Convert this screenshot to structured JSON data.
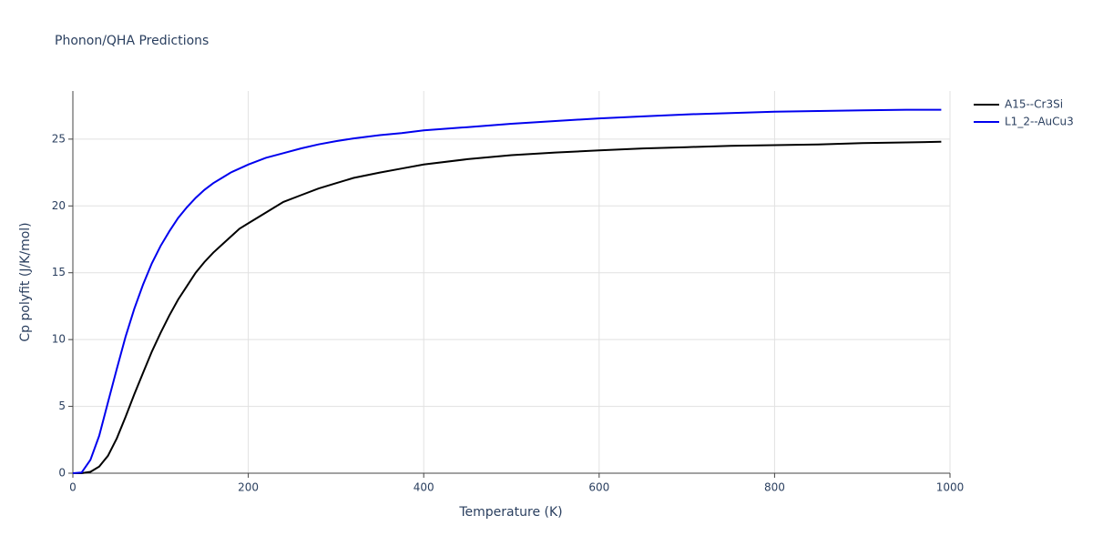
{
  "chart_data": {
    "type": "line",
    "title": "Phonon/QHA Predictions",
    "x_label": "Temperature (K)",
    "y_label": "Cp polyfit (J/K/mol)",
    "x": [
      0,
      10,
      20,
      30,
      40,
      50,
      60,
      70,
      80,
      90,
      100,
      110,
      120,
      130,
      140,
      150,
      160,
      170,
      180,
      190,
      200,
      220,
      240,
      260,
      280,
      300,
      320,
      350,
      375,
      400,
      450,
      500,
      550,
      600,
      650,
      700,
      750,
      800,
      850,
      900,
      950,
      990
    ],
    "series": [
      {
        "name": "A15--Cr3Si",
        "color": "#000000",
        "values": [
          0,
          0,
          0.1,
          0.5,
          1.3,
          2.6,
          4.2,
          5.9,
          7.5,
          9.1,
          10.5,
          11.8,
          13.0,
          14.0,
          15.0,
          15.8,
          16.5,
          17.1,
          17.7,
          18.3,
          18.7,
          19.5,
          20.3,
          20.8,
          21.3,
          21.7,
          22.1,
          22.5,
          22.8,
          23.1,
          23.5,
          23.8,
          24.0,
          24.15,
          24.3,
          24.4,
          24.5,
          24.55,
          24.6,
          24.7,
          24.75,
          24.8
        ]
      },
      {
        "name": "L1_2--AuCu3",
        "color": "#0000ee",
        "values": [
          0,
          0.05,
          1.0,
          2.8,
          5.3,
          7.8,
          10.2,
          12.3,
          14.1,
          15.7,
          17.0,
          18.1,
          19.1,
          19.9,
          20.6,
          21.2,
          21.7,
          22.1,
          22.5,
          22.8,
          23.1,
          23.6,
          23.95,
          24.3,
          24.6,
          24.85,
          25.05,
          25.3,
          25.45,
          25.65,
          25.9,
          26.15,
          26.35,
          26.55,
          26.7,
          26.85,
          26.95,
          27.05,
          27.1,
          27.15,
          27.2,
          27.2
        ]
      }
    ],
    "xlim": [
      0,
      1000
    ],
    "xticks": [
      0,
      200,
      400,
      600,
      800,
      1000
    ],
    "ylim": [
      0,
      28.6
    ],
    "yticks": [
      0,
      5,
      10,
      15,
      20,
      25
    ],
    "grid": true
  }
}
